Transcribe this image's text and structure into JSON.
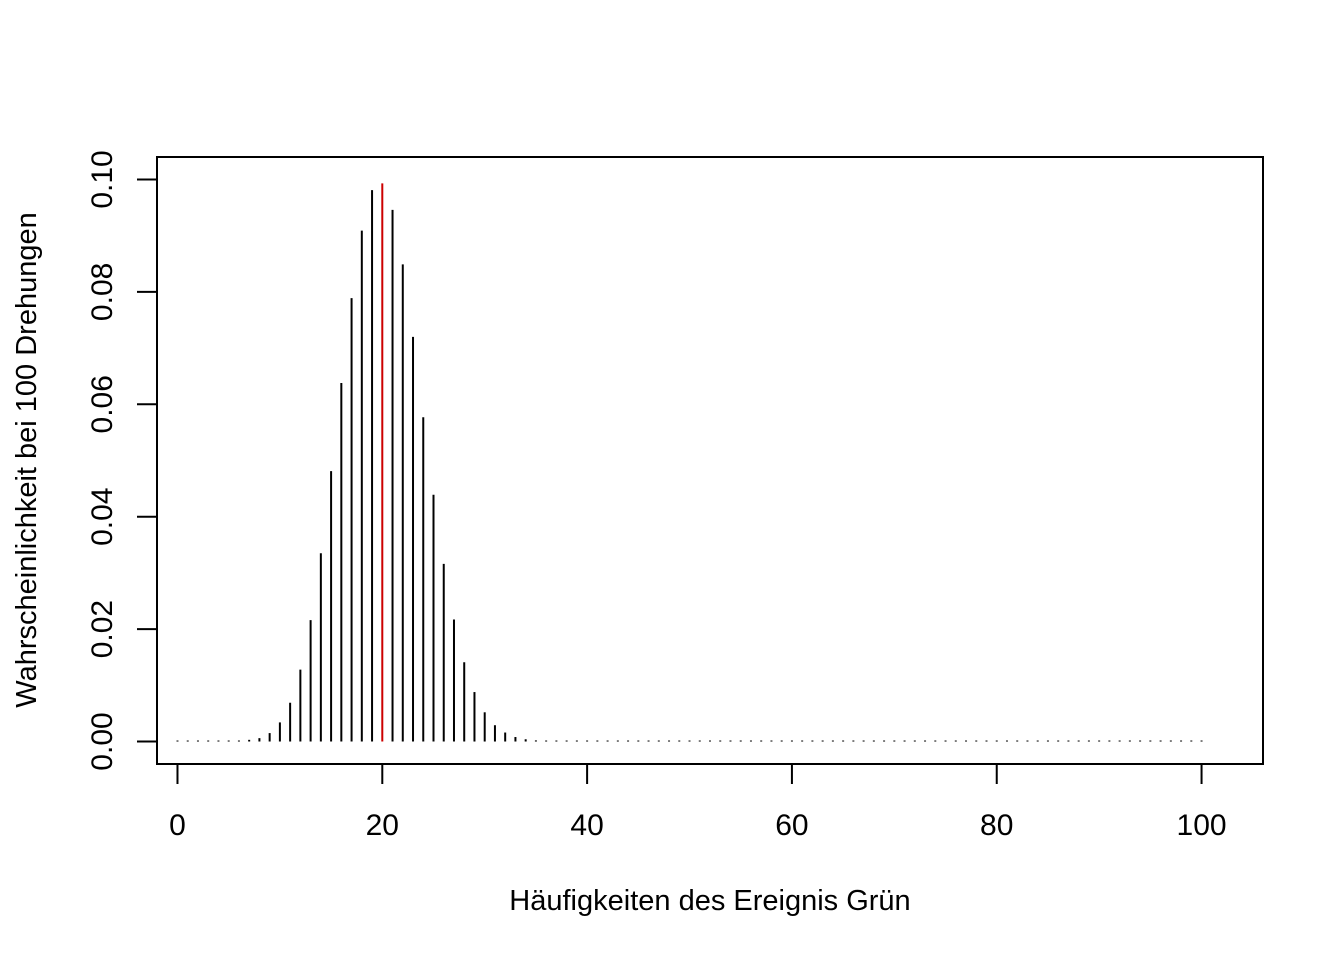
{
  "chart_data": {
    "type": "bar",
    "title": "",
    "xlabel": "Häufigkeiten des Ereignis Grün",
    "ylabel": "Wahrscheinlichkeit bei 100 Drehungen",
    "xlim": [
      -2,
      106
    ],
    "ylim": [
      -0.004,
      0.104
    ],
    "x_ticks": [
      0,
      20,
      40,
      60,
      80,
      100
    ],
    "x_tick_labels": [
      "0",
      "20",
      "40",
      "60",
      "80",
      "100"
    ],
    "y_ticks": [
      0,
      0.02,
      0.04,
      0.06,
      0.08,
      0.1
    ],
    "y_tick_labels": [
      "0.00",
      "0.02",
      "0.04",
      "0.06",
      "0.08",
      "0.10"
    ],
    "grid": false,
    "x": [
      0,
      1,
      2,
      3,
      4,
      5,
      6,
      7,
      8,
      9,
      10,
      11,
      12,
      13,
      14,
      15,
      16,
      17,
      18,
      19,
      20,
      21,
      22,
      23,
      24,
      25,
      26,
      27,
      28,
      29,
      30,
      31,
      32,
      33,
      34,
      35,
      36,
      37,
      38,
      39,
      40,
      41,
      42,
      43,
      44,
      45,
      46,
      47,
      48,
      49,
      50,
      51,
      52,
      53,
      54,
      55,
      56,
      57,
      58,
      59,
      60,
      61,
      62,
      63,
      64,
      65,
      66,
      67,
      68,
      69,
      70,
      71,
      72,
      73,
      74,
      75,
      76,
      77,
      78,
      79,
      80,
      81,
      82,
      83,
      84,
      85,
      86,
      87,
      88,
      89,
      90,
      91,
      92,
      93,
      94,
      95,
      96,
      97,
      98,
      99,
      100
    ],
    "values": [
      0.0,
      0.0,
      0.0,
      0.0,
      0.0,
      3e-05,
      0.0001,
      0.0003,
      0.0006,
      0.0015,
      0.0034,
      0.0069,
      0.0128,
      0.0216,
      0.0335,
      0.0481,
      0.0638,
      0.0789,
      0.0909,
      0.0981,
      0.0993,
      0.0946,
      0.0849,
      0.072,
      0.0577,
      0.0439,
      0.0316,
      0.0217,
      0.0141,
      0.0088,
      0.0052,
      0.0029,
      0.0016,
      0.0008,
      0.0004,
      0.0002,
      0.0001,
      4e-05,
      2e-05,
      1e-05,
      0.0,
      0.0,
      0.0,
      0.0,
      0.0,
      0.0,
      0.0,
      0.0,
      0.0,
      0.0,
      0.0,
      0.0,
      0.0,
      0.0,
      0.0,
      0.0,
      0.0,
      0.0,
      0.0,
      0.0,
      0.0,
      0.0,
      0.0,
      0.0,
      0.0,
      0.0,
      0.0,
      0.0,
      0.0,
      0.0,
      0.0,
      0.0,
      0.0,
      0.0,
      0.0,
      0.0,
      0.0,
      0.0,
      0.0,
      0.0,
      0.0,
      0.0,
      0.0,
      0.0,
      0.0,
      0.0,
      0.0,
      0.0,
      0.0,
      0.0,
      0.0,
      0.0,
      0.0,
      0.0,
      0.0,
      0.0,
      0.0,
      0.0,
      0.0,
      0.0,
      0.0
    ],
    "highlight_x": 20,
    "bar_color": "#000000",
    "highlight_color": "#cc0000"
  }
}
